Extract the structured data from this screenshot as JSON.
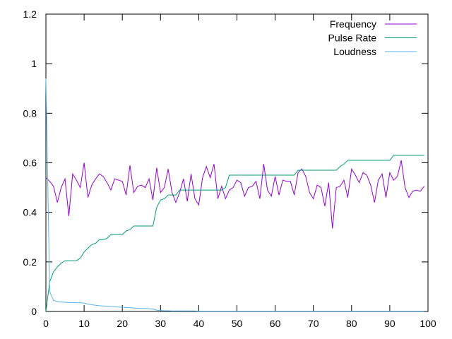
{
  "chart_data": {
    "type": "line",
    "title": "",
    "xlabel": "",
    "ylabel": "",
    "xlim": [
      0,
      100
    ],
    "ylim": [
      0,
      1.2
    ],
    "x_ticks": [
      0,
      10,
      20,
      30,
      40,
      50,
      60,
      70,
      80,
      90,
      100
    ],
    "y_ticks": [
      0,
      0.2,
      0.4,
      0.6,
      0.8,
      1,
      1.2
    ],
    "grid": false,
    "legend_position": "top-right",
    "series": [
      {
        "name": "Frequency",
        "color": "#9400d3",
        "points": [
          [
            0,
            0.54
          ],
          [
            1,
            0.525
          ],
          [
            2,
            0.505
          ],
          [
            3,
            0.44
          ],
          [
            4,
            0.5
          ],
          [
            5,
            0.535
          ],
          [
            6,
            0.385
          ],
          [
            7,
            0.555
          ],
          [
            8,
            0.53
          ],
          [
            9,
            0.5
          ],
          [
            10,
            0.6
          ],
          [
            11,
            0.46
          ],
          [
            12,
            0.51
          ],
          [
            13,
            0.535
          ],
          [
            14,
            0.555
          ],
          [
            15,
            0.545
          ],
          [
            16,
            0.52
          ],
          [
            17,
            0.49
          ],
          [
            18,
            0.535
          ],
          [
            19,
            0.53
          ],
          [
            20,
            0.525
          ],
          [
            21,
            0.47
          ],
          [
            22,
            0.59
          ],
          [
            23,
            0.48
          ],
          [
            24,
            0.505
          ],
          [
            25,
            0.51
          ],
          [
            26,
            0.5
          ],
          [
            27,
            0.535
          ],
          [
            28,
            0.45
          ],
          [
            29,
            0.58
          ],
          [
            30,
            0.48
          ],
          [
            31,
            0.5
          ],
          [
            32,
            0.575
          ],
          [
            33,
            0.48
          ],
          [
            34,
            0.44
          ],
          [
            35,
            0.48
          ],
          [
            36,
            0.535
          ],
          [
            37,
            0.445
          ],
          [
            38,
            0.555
          ],
          [
            39,
            0.455
          ],
          [
            40,
            0.43
          ],
          [
            41,
            0.54
          ],
          [
            42,
            0.585
          ],
          [
            43,
            0.54
          ],
          [
            44,
            0.595
          ],
          [
            45,
            0.455
          ],
          [
            46,
            0.505
          ],
          [
            47,
            0.455
          ],
          [
            48,
            0.49
          ],
          [
            49,
            0.5
          ],
          [
            50,
            0.53
          ],
          [
            51,
            0.52
          ],
          [
            52,
            0.465
          ],
          [
            53,
            0.5
          ],
          [
            54,
            0.505
          ],
          [
            55,
            0.525
          ],
          [
            56,
            0.455
          ],
          [
            57,
            0.595
          ],
          [
            58,
            0.49
          ],
          [
            59,
            0.465
          ],
          [
            60,
            0.545
          ],
          [
            61,
            0.47
          ],
          [
            62,
            0.53
          ],
          [
            63,
            0.525
          ],
          [
            64,
            0.525
          ],
          [
            65,
            0.47
          ],
          [
            66,
            0.56
          ],
          [
            67,
            0.575
          ],
          [
            68,
            0.545
          ],
          [
            69,
            0.48
          ],
          [
            70,
            0.455
          ],
          [
            71,
            0.51
          ],
          [
            72,
            0.5
          ],
          [
            73,
            0.425
          ],
          [
            74,
            0.52
          ],
          [
            75,
            0.335
          ],
          [
            76,
            0.5
          ],
          [
            77,
            0.505
          ],
          [
            78,
            0.53
          ],
          [
            79,
            0.46
          ],
          [
            80,
            0.575
          ],
          [
            81,
            0.55
          ],
          [
            82,
            0.52
          ],
          [
            83,
            0.56
          ],
          [
            84,
            0.55
          ],
          [
            85,
            0.51
          ],
          [
            86,
            0.44
          ],
          [
            87,
            0.53
          ],
          [
            88,
            0.555
          ],
          [
            89,
            0.46
          ],
          [
            90,
            0.56
          ],
          [
            91,
            0.53
          ],
          [
            92,
            0.545
          ],
          [
            93,
            0.61
          ],
          [
            94,
            0.5
          ],
          [
            95,
            0.46
          ],
          [
            96,
            0.485
          ],
          [
            97,
            0.49
          ],
          [
            98,
            0.485
          ],
          [
            99,
            0.505
          ]
        ]
      },
      {
        "name": "Pulse Rate",
        "color": "#009e73",
        "points": [
          [
            0,
            0
          ],
          [
            1,
            0.12
          ],
          [
            2,
            0.16
          ],
          [
            3,
            0.18
          ],
          [
            4,
            0.195
          ],
          [
            5,
            0.205
          ],
          [
            6,
            0.205
          ],
          [
            7,
            0.205
          ],
          [
            8,
            0.205
          ],
          [
            9,
            0.215
          ],
          [
            10,
            0.24
          ],
          [
            11,
            0.255
          ],
          [
            12,
            0.27
          ],
          [
            13,
            0.275
          ],
          [
            14,
            0.29
          ],
          [
            15,
            0.29
          ],
          [
            16,
            0.295
          ],
          [
            17,
            0.31
          ],
          [
            18,
            0.31
          ],
          [
            19,
            0.31
          ],
          [
            20,
            0.31
          ],
          [
            21,
            0.325
          ],
          [
            22,
            0.33
          ],
          [
            23,
            0.345
          ],
          [
            24,
            0.345
          ],
          [
            25,
            0.345
          ],
          [
            26,
            0.345
          ],
          [
            27,
            0.345
          ],
          [
            28,
            0.345
          ],
          [
            29,
            0.42
          ],
          [
            30,
            0.45
          ],
          [
            31,
            0.455
          ],
          [
            32,
            0.47
          ],
          [
            33,
            0.47
          ],
          [
            34,
            0.47
          ],
          [
            35,
            0.49
          ],
          [
            36,
            0.49
          ],
          [
            37,
            0.49
          ],
          [
            38,
            0.49
          ],
          [
            39,
            0.49
          ],
          [
            40,
            0.49
          ],
          [
            41,
            0.49
          ],
          [
            42,
            0.49
          ],
          [
            43,
            0.49
          ],
          [
            44,
            0.49
          ],
          [
            45,
            0.49
          ],
          [
            46,
            0.49
          ],
          [
            47,
            0.5
          ],
          [
            48,
            0.55
          ],
          [
            49,
            0.55
          ],
          [
            50,
            0.55
          ],
          [
            51,
            0.55
          ],
          [
            52,
            0.55
          ],
          [
            53,
            0.55
          ],
          [
            54,
            0.55
          ],
          [
            55,
            0.55
          ],
          [
            56,
            0.55
          ],
          [
            57,
            0.55
          ],
          [
            58,
            0.55
          ],
          [
            59,
            0.55
          ],
          [
            60,
            0.55
          ],
          [
            61,
            0.55
          ],
          [
            62,
            0.55
          ],
          [
            63,
            0.55
          ],
          [
            64,
            0.55
          ],
          [
            65,
            0.55
          ],
          [
            66,
            0.57
          ],
          [
            67,
            0.57
          ],
          [
            68,
            0.57
          ],
          [
            69,
            0.57
          ],
          [
            70,
            0.57
          ],
          [
            71,
            0.57
          ],
          [
            72,
            0.57
          ],
          [
            73,
            0.57
          ],
          [
            74,
            0.57
          ],
          [
            75,
            0.57
          ],
          [
            76,
            0.57
          ],
          [
            77,
            0.585
          ],
          [
            78,
            0.595
          ],
          [
            79,
            0.61
          ],
          [
            80,
            0.61
          ],
          [
            81,
            0.61
          ],
          [
            82,
            0.61
          ],
          [
            83,
            0.61
          ],
          [
            84,
            0.61
          ],
          [
            85,
            0.61
          ],
          [
            86,
            0.61
          ],
          [
            87,
            0.61
          ],
          [
            88,
            0.61
          ],
          [
            89,
            0.61
          ],
          [
            90,
            0.61
          ],
          [
            91,
            0.63
          ],
          [
            92,
            0.63
          ],
          [
            93,
            0.63
          ],
          [
            94,
            0.63
          ],
          [
            95,
            0.63
          ],
          [
            96,
            0.63
          ],
          [
            97,
            0.63
          ],
          [
            98,
            0.63
          ],
          [
            99,
            0.63
          ]
        ]
      },
      {
        "name": "Loudness",
        "color": "#56b4e9",
        "points": [
          [
            0,
            0.94
          ],
          [
            1,
            0.08
          ],
          [
            2,
            0.045
          ],
          [
            3,
            0.04
          ],
          [
            4,
            0.038
          ],
          [
            5,
            0.037
          ],
          [
            6,
            0.036
          ],
          [
            7,
            0.036
          ],
          [
            8,
            0.035
          ],
          [
            9,
            0.035
          ],
          [
            10,
            0.034
          ],
          [
            11,
            0.03
          ],
          [
            12,
            0.027
          ],
          [
            13,
            0.025
          ],
          [
            14,
            0.023
          ],
          [
            15,
            0.022
          ],
          [
            16,
            0.021
          ],
          [
            17,
            0.02
          ],
          [
            18,
            0.019
          ],
          [
            19,
            0.018
          ],
          [
            20,
            0.017
          ],
          [
            21,
            0.016
          ],
          [
            22,
            0.015
          ],
          [
            23,
            0.014
          ],
          [
            24,
            0.013
          ],
          [
            25,
            0.012
          ],
          [
            26,
            0.012
          ],
          [
            27,
            0.011
          ],
          [
            28,
            0.01
          ],
          [
            29,
            0.005
          ],
          [
            30,
            0.004
          ],
          [
            31,
            0.003
          ],
          [
            32,
            0.003
          ],
          [
            33,
            0.002
          ],
          [
            34,
            0.002
          ],
          [
            35,
            0.002
          ],
          [
            36,
            0.002
          ],
          [
            37,
            0.002
          ],
          [
            38,
            0.002
          ],
          [
            39,
            0.002
          ],
          [
            40,
            0.001
          ],
          [
            50,
            0.001
          ],
          [
            60,
            0.001
          ],
          [
            70,
            0.001
          ],
          [
            80,
            0.001
          ],
          [
            90,
            0.001
          ],
          [
            99,
            0.001
          ]
        ]
      }
    ]
  }
}
